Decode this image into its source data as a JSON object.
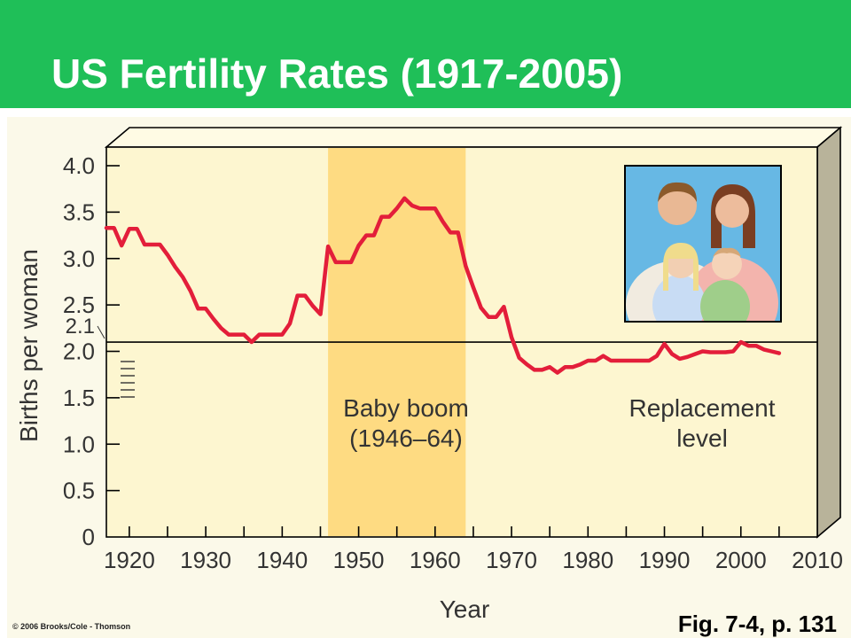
{
  "slide": {
    "title": "US Fertility Rates (1917-2005)",
    "caption": "Fig. 7-4, p. 131",
    "copyright": "© 2006 Brooks/Cole - Thomson"
  },
  "colors": {
    "header": "#1fbf58",
    "plot_face": "#fdf6d0",
    "plot_side": "#b8b39a",
    "baby_boom_band": "#fedb82",
    "series": "#e31e3a"
  },
  "photo": {
    "icon": "family-portrait-icon"
  },
  "chart_data": {
    "type": "line",
    "xlabel": "Year",
    "ylabel": "Births per woman",
    "xlim": [
      1917,
      2010
    ],
    "ylim": [
      0,
      4.0
    ],
    "x_ticks": [
      1920,
      1930,
      1940,
      1950,
      1960,
      1970,
      1980,
      1990,
      2000,
      2010
    ],
    "y_ticks": [
      {
        "value": 0,
        "label": "0"
      },
      {
        "value": 0.5,
        "label": "0.5"
      },
      {
        "value": 1.0,
        "label": "1.0"
      },
      {
        "value": 1.5,
        "label": "1.5"
      },
      {
        "value": 2.0,
        "label": "2.0"
      },
      {
        "value": 2.5,
        "label": "2.5"
      },
      {
        "value": 3.0,
        "label": "3.0"
      },
      {
        "value": 3.5,
        "label": "3.5"
      },
      {
        "value": 4.0,
        "label": "4.0"
      }
    ],
    "reference_line": {
      "value": 2.1,
      "label": "2.1",
      "annotation": [
        "Replacement",
        "level"
      ]
    },
    "shaded_region": {
      "from": 1946,
      "to": 1964,
      "annotation": [
        "Baby boom",
        "(1946–64)"
      ]
    },
    "series": [
      {
        "x": [
          1917,
          1918,
          1919,
          1920,
          1921,
          1922,
          1923,
          1924,
          1925,
          1926,
          1927,
          1928,
          1929,
          1930,
          1931,
          1932,
          1933,
          1934,
          1935,
          1936,
          1937,
          1938,
          1939,
          1940,
          1941,
          1942,
          1943,
          1944,
          1945,
          1946,
          1947,
          1948,
          1949,
          1950,
          1951,
          1952,
          1953,
          1954,
          1955,
          1956,
          1957,
          1958,
          1959,
          1960,
          1961,
          1962,
          1963,
          1964,
          1965,
          1966,
          1967,
          1968,
          1969,
          1970,
          1971,
          1972,
          1973,
          1974,
          1975,
          1976,
          1977,
          1978,
          1979,
          1980,
          1981,
          1982,
          1983,
          1984,
          1985,
          1986,
          1987,
          1988,
          1989,
          1990,
          1991,
          1992,
          1993,
          1994,
          1995,
          1996,
          1997,
          1998,
          1999,
          2000,
          2001,
          2002,
          2003,
          2004,
          2005
        ],
        "y": [
          3.33,
          3.33,
          3.14,
          3.32,
          3.32,
          3.15,
          3.15,
          3.15,
          3.04,
          2.91,
          2.8,
          2.65,
          2.46,
          2.46,
          2.35,
          2.25,
          2.18,
          2.18,
          2.18,
          2.1,
          2.18,
          2.18,
          2.18,
          2.18,
          2.3,
          2.6,
          2.6,
          2.49,
          2.4,
          3.13,
          2.96,
          2.96,
          2.96,
          3.14,
          3.25,
          3.25,
          3.45,
          3.45,
          3.54,
          3.65,
          3.57,
          3.54,
          3.54,
          3.54,
          3.4,
          3.28,
          3.28,
          2.92,
          2.69,
          2.47,
          2.37,
          2.37,
          2.48,
          2.15,
          1.93,
          1.86,
          1.8,
          1.8,
          1.83,
          1.77,
          1.83,
          1.83,
          1.86,
          1.9,
          1.9,
          1.95,
          1.9,
          1.9,
          1.9,
          1.9,
          1.9,
          1.9,
          1.95,
          2.08,
          1.97,
          1.92,
          1.94,
          1.97,
          2.0,
          1.99,
          1.99,
          1.99,
          2.0,
          2.1,
          2.06,
          2.06,
          2.02,
          2.0,
          1.98
        ]
      }
    ]
  }
}
